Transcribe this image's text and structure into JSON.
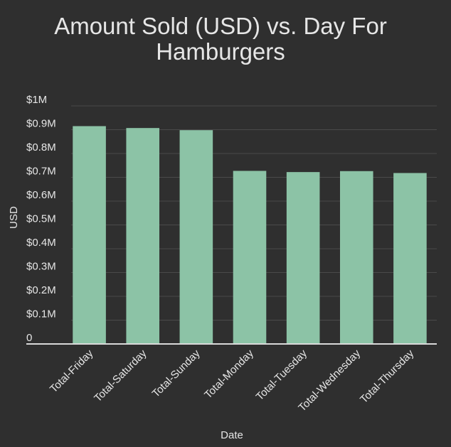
{
  "chart_data": {
    "type": "bar",
    "title_lines": [
      "Amount Sold (USD) vs. Day For",
      "Hamburgers"
    ],
    "xlabel": "Date",
    "ylabel": "USD",
    "categories": [
      "Total-Friday",
      "Total-Saturday",
      "Total-Sunday",
      "Total-Monday",
      "Total-Tuesday",
      "Total-Wednesday",
      "Total-Thursday"
    ],
    "values": [
      915000,
      907000,
      898000,
      727000,
      722000,
      726000,
      718000
    ],
    "ylim": [
      0,
      1000000
    ],
    "yticks": [
      0,
      100000,
      200000,
      300000,
      400000,
      500000,
      600000,
      700000,
      800000,
      900000,
      1000000
    ],
    "ytick_labels": [
      "0",
      "$0.1M",
      "$0.2M",
      "$0.3M",
      "$0.4M",
      "$0.5M",
      "$0.6M",
      "$0.7M",
      "$0.8M",
      "$0.9M",
      "$1M"
    ],
    "grid": true,
    "legend": "none",
    "colors": {
      "background": "#2f2f2f",
      "bar": "#8cc3a6",
      "grid": "#4a4a4a",
      "axis": "#d9d9d9",
      "text": "#e6e6e6"
    }
  }
}
